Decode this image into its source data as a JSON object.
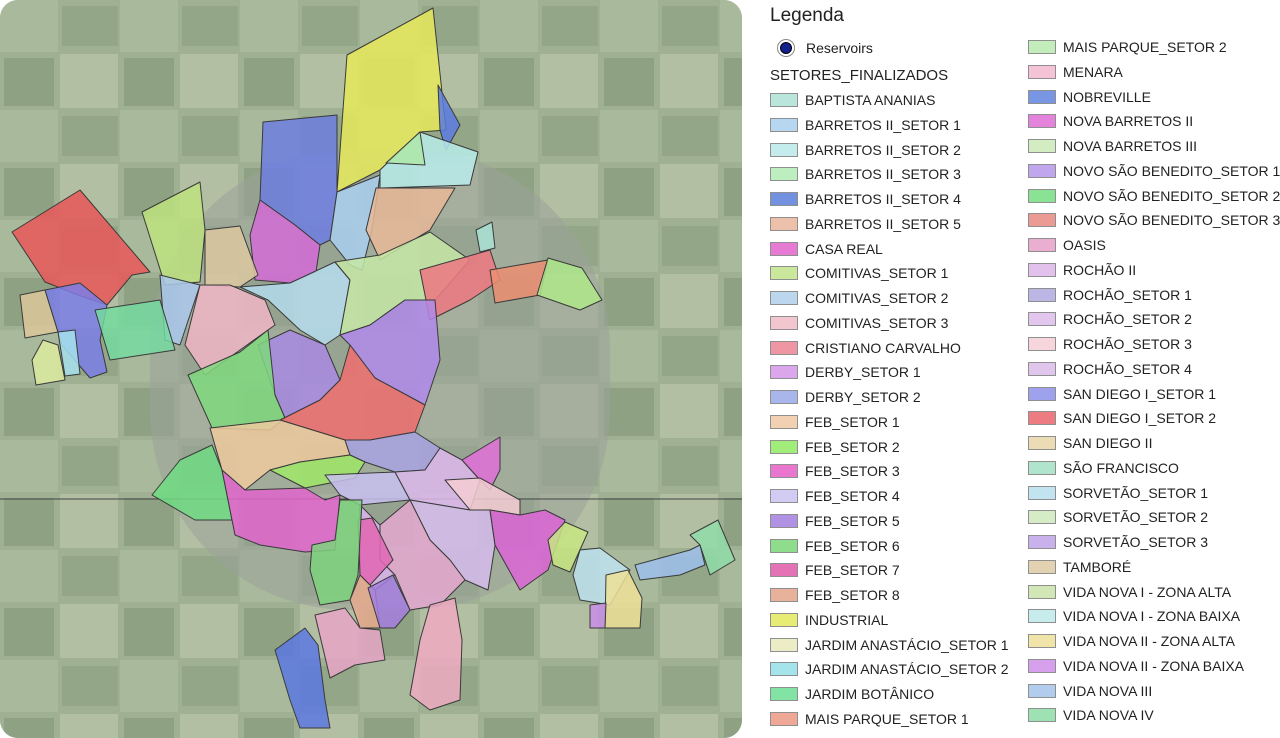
{
  "legend": {
    "title": "Legenda",
    "reservoirs_label": "Reservoirs",
    "group_title": "SETORES_FINALIZADOS",
    "items": [
      {
        "label": "BAPTISTA ANANIAS",
        "color": "#b9e6da"
      },
      {
        "label": "BARRETOS II_SETOR 1",
        "color": "#b7d6ef"
      },
      {
        "label": "BARRETOS II_SETOR 2",
        "color": "#c5ecec"
      },
      {
        "label": "BARRETOS II_SETOR 3",
        "color": "#bdeec0"
      },
      {
        "label": "BARRETOS II_SETOR 4",
        "color": "#7291df"
      },
      {
        "label": "BARRETOS II_SETOR 5",
        "color": "#ecc0aa"
      },
      {
        "label": "CASA REAL",
        "color": "#e77ad2"
      },
      {
        "label": "COMITIVAS_SETOR 1",
        "color": "#c9e89c"
      },
      {
        "label": "COMITIVAS_SETOR 2",
        "color": "#bcd6ee"
      },
      {
        "label": "COMITIVAS_SETOR 3",
        "color": "#f3c6cf"
      },
      {
        "label": "CRISTIANO CARVALHO",
        "color": "#ee96a2"
      },
      {
        "label": "DERBY_SETOR 1",
        "color": "#dba6ec"
      },
      {
        "label": "DERBY_SETOR 2",
        "color": "#a9b6ec"
      },
      {
        "label": "FEB_SETOR 1",
        "color": "#f1d1b2"
      },
      {
        "label": "FEB_SETOR 2",
        "color": "#a1ec7a"
      },
      {
        "label": "FEB_SETOR 3",
        "color": "#e977cf"
      },
      {
        "label": "FEB_SETOR 4",
        "color": "#d2ccf3"
      },
      {
        "label": "FEB_SETOR 5",
        "color": "#b191e4"
      },
      {
        "label": "FEB_SETOR 6",
        "color": "#8fdc8d"
      },
      {
        "label": "FEB_SETOR 7",
        "color": "#e472b4"
      },
      {
        "label": "FEB_SETOR 8",
        "color": "#e8b19a"
      },
      {
        "label": "INDUSTRIAL",
        "color": "#e8ec74"
      },
      {
        "label": "JARDIM ANASTÁCIO_SETOR 1",
        "color": "#ececc6"
      },
      {
        "label": "JARDIM ANASTÁCIO_SETOR 2",
        "color": "#a6e4ec"
      },
      {
        "label": "JARDIM BOTÂNICO",
        "color": "#82e4a4"
      },
      {
        "label": "MAIS PARQUE_SETOR 1",
        "color": "#f0a896"
      },
      {
        "label": "MAIS PARQUE_SETOR 2",
        "color": "#c4edbc"
      },
      {
        "label": "MENARA",
        "color": "#f4c4d6"
      },
      {
        "label": "NOBREVILLE",
        "color": "#7896e4"
      },
      {
        "label": "NOVA BARRETOS II",
        "color": "#e483dc"
      },
      {
        "label": "NOVA BARRETOS III",
        "color": "#d4ecc2"
      },
      {
        "label": "NOVO SÃO BENEDITO_SETOR 1",
        "color": "#c0a6ec"
      },
      {
        "label": "NOVO SÃO BENEDITO_SETOR 2",
        "color": "#8ae294"
      },
      {
        "label": "NOVO SÃO BENEDITO_SETOR 3",
        "color": "#ec9a94"
      },
      {
        "label": "OASIS",
        "color": "#eaaed0"
      },
      {
        "label": "ROCHÃO II",
        "color": "#e2c2ec"
      },
      {
        "label": "ROCHÃO_SETOR 1",
        "color": "#bcb6e4"
      },
      {
        "label": "ROCHÃO_SETOR 2",
        "color": "#e2c6ee"
      },
      {
        "label": "ROCHÃO_SETOR 3",
        "color": "#f6d6dc"
      },
      {
        "label": "ROCHÃO_SETOR 4",
        "color": "#e0c6ec"
      },
      {
        "label": "SAN DIEGO I_SETOR 1",
        "color": "#9ea2ec"
      },
      {
        "label": "SAN DIEGO I_SETOR 2",
        "color": "#ec7c82"
      },
      {
        "label": "SAN DIEGO II",
        "color": "#ecdcb6"
      },
      {
        "label": "SÃO FRANCISCO",
        "color": "#b0e4cc"
      },
      {
        "label": "SORVETÃO_SETOR 1",
        "color": "#c2e4f0"
      },
      {
        "label": "SORVETÃO_SETOR 2",
        "color": "#d6ecc6"
      },
      {
        "label": "SORVETÃO_SETOR 3",
        "color": "#c9b2ec"
      },
      {
        "label": "TAMBORÉ",
        "color": "#e2d2b2"
      },
      {
        "label": "VIDA NOVA I - ZONA ALTA",
        "color": "#d2e6b6"
      },
      {
        "label": "VIDA NOVA I - ZONA BAIXA",
        "color": "#c6ecec"
      },
      {
        "label": "VIDA NOVA II - ZONA ALTA",
        "color": "#f0e4a8"
      },
      {
        "label": "VIDA NOVA II - ZONA BAIXA",
        "color": "#d6a0ec"
      },
      {
        "label": "VIDA NOVA III",
        "color": "#b2ccee"
      },
      {
        "label": "VIDA NOVA IV",
        "color": "#9ee2b4"
      }
    ]
  },
  "map": {
    "background_color": "#9aab8e"
  }
}
